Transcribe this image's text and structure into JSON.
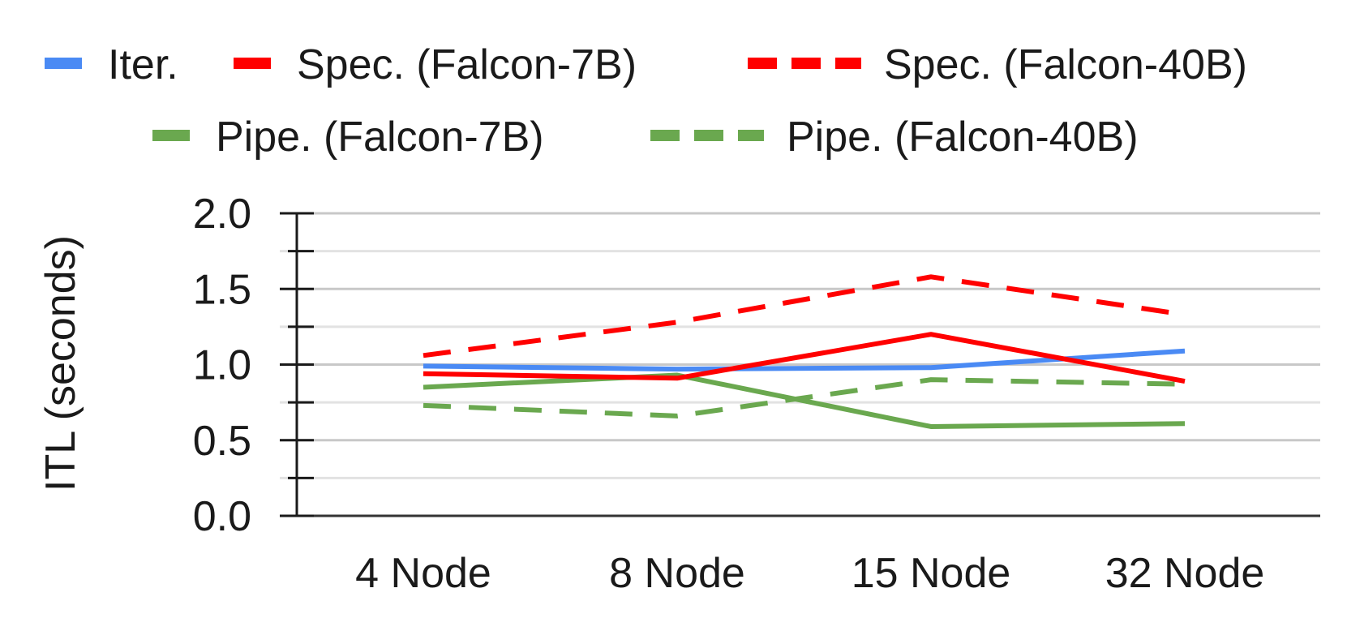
{
  "chart_data": {
    "type": "line",
    "title": "",
    "xlabel": "",
    "ylabel": "ITL (seconds)",
    "categories": [
      "4 Node",
      "8 Node",
      "15 Node",
      "32 Node"
    ],
    "ylim": [
      0,
      2.0
    ],
    "yticks": [
      "0.0",
      "0.5",
      "1.0",
      "1.5",
      "2.0"
    ],
    "grid": true,
    "legend_position": "top",
    "series": [
      {
        "name": "Iter.",
        "color": "#4a8af4",
        "dash": "solid",
        "values": [
          0.99,
          0.97,
          0.98,
          1.09
        ]
      },
      {
        "name": "Spec. (Falcon-7B)",
        "color": "#ff0000",
        "dash": "solid",
        "values": [
          0.94,
          0.91,
          1.2,
          0.89
        ]
      },
      {
        "name": "Spec. (Falcon-40B)",
        "color": "#ff0000",
        "dash": "dashed",
        "values": [
          1.06,
          1.28,
          1.58,
          1.33
        ]
      },
      {
        "name": "Pipe. (Falcon-7B)",
        "color": "#6aa84f",
        "dash": "solid",
        "values": [
          0.85,
          0.93,
          0.59,
          0.61
        ]
      },
      {
        "name": "Pipe. (Falcon-40B)",
        "color": "#6aa84f",
        "dash": "dashed",
        "values": [
          0.73,
          0.66,
          0.9,
          0.87
        ]
      }
    ]
  }
}
